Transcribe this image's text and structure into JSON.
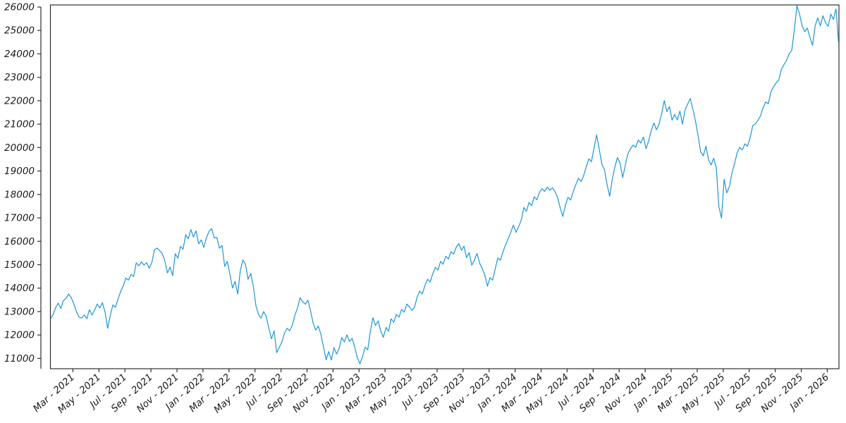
{
  "chart_data": {
    "type": "line",
    "title": "",
    "xlabel": "",
    "ylabel": "",
    "legend": "none",
    "grid": "off",
    "line_color": "#1b97d8",
    "axis_color": "#2e2e2e",
    "background_color": "#ffffff",
    "x_unit": "months since Jan 2021",
    "x_start": 0.27,
    "x_step": 0.2,
    "xlim": [
      0.27,
      60.9
    ],
    "ylim": [
      10560,
      26090
    ],
    "y_ticks": [
      11000,
      12000,
      13000,
      14000,
      15000,
      16000,
      17000,
      18000,
      19000,
      20000,
      21000,
      22000,
      23000,
      24000,
      25000,
      26000
    ],
    "x_ticks": [
      {
        "m": 2,
        "label": "Mar - 2021"
      },
      {
        "m": 4,
        "label": "May - 2021"
      },
      {
        "m": 6,
        "label": "Jul - 2021"
      },
      {
        "m": 8,
        "label": "Sep - 2021"
      },
      {
        "m": 10,
        "label": "Nov - 2021"
      },
      {
        "m": 12,
        "label": "Jan - 2022"
      },
      {
        "m": 14,
        "label": "Mar - 2022"
      },
      {
        "m": 16,
        "label": "May - 2022"
      },
      {
        "m": 18,
        "label": "Jul - 2022"
      },
      {
        "m": 20,
        "label": "Sep - 2022"
      },
      {
        "m": 22,
        "label": "Nov - 2022"
      },
      {
        "m": 24,
        "label": "Jan - 2023"
      },
      {
        "m": 26,
        "label": "Mar - 2023"
      },
      {
        "m": 28,
        "label": "May - 2023"
      },
      {
        "m": 30,
        "label": "Jul - 2023"
      },
      {
        "m": 32,
        "label": "Sep - 2023"
      },
      {
        "m": 34,
        "label": "Nov - 2023"
      },
      {
        "m": 36,
        "label": "Jan - 2024"
      },
      {
        "m": 38,
        "label": "Mar - 2024"
      },
      {
        "m": 40,
        "label": "May - 2024"
      },
      {
        "m": 42,
        "label": "Jul - 2024"
      },
      {
        "m": 44,
        "label": "Sep - 2024"
      },
      {
        "m": 46,
        "label": "Nov - 2024"
      },
      {
        "m": 48,
        "label": "Jan - 2025"
      },
      {
        "m": 50,
        "label": "Mar - 2025"
      },
      {
        "m": 52,
        "label": "May - 2025"
      },
      {
        "m": 54,
        "label": "Jul - 2025"
      },
      {
        "m": 56,
        "label": "Sep - 2025"
      },
      {
        "m": 58,
        "label": "Nov - 2025"
      },
      {
        "m": 60,
        "label": "Jan - 2026"
      }
    ],
    "values": [
      12700,
      12860,
      13170,
      13360,
      13130,
      13470,
      13550,
      13750,
      13600,
      13330,
      13000,
      12760,
      12720,
      12850,
      12690,
      13080,
      12850,
      13060,
      13320,
      13160,
      13380,
      12980,
      12290,
      12830,
      13280,
      13180,
      13530,
      13860,
      14100,
      14430,
      14340,
      14580,
      14500,
      15080,
      14950,
      15120,
      14980,
      15090,
      14850,
      15100,
      15640,
      15710,
      15600,
      15470,
      15160,
      14650,
      14900,
      14530,
      15470,
      15280,
      15780,
      15660,
      16280,
      16100,
      16500,
      16180,
      16440,
      15890,
      16060,
      15740,
      16170,
      16420,
      16540,
      16140,
      16160,
      15700,
      15820,
      14930,
      15140,
      14600,
      14000,
      14290,
      13750,
      14740,
      15200,
      15030,
      14380,
      14620,
      14080,
      13250,
      12870,
      12720,
      13000,
      12790,
      12270,
      11840,
      12180,
      11250,
      11470,
      11710,
      12080,
      12290,
      12180,
      12410,
      12840,
      13150,
      13590,
      13420,
      13310,
      13480,
      13040,
      12510,
      12210,
      12380,
      12030,
      11480,
      10940,
      11290,
      10930,
      11460,
      11190,
      11420,
      11890,
      11700,
      12010,
      11720,
      11860,
      11480,
      11020,
      10770,
      11090,
      11480,
      11360,
      12150,
      12740,
      12410,
      12600,
      12170,
      11900,
      12320,
      12160,
      12690,
      12540,
      12880,
      12760,
      13090,
      12970,
      13320,
      13200,
      13050,
      13180,
      13620,
      13870,
      13750,
      14120,
      14380,
      14260,
      14620,
      14890,
      14770,
      15140,
      15020,
      15360,
      15240,
      15560,
      15450,
      15740,
      15900,
      15620,
      15790,
      15300,
      15520,
      14980,
      15190,
      15480,
      15070,
      14840,
      14560,
      14080,
      14450,
      14340,
      14820,
      15290,
      15190,
      15560,
      15850,
      16120,
      16390,
      16690,
      16380,
      16620,
      16900,
      17440,
      17280,
      17660,
      17520,
      17900,
      17770,
      18090,
      18250,
      18130,
      18310,
      18180,
      18290,
      18110,
      17860,
      17420,
      17060,
      17540,
      17880,
      17760,
      18120,
      18420,
      18690,
      18550,
      18810,
      19180,
      19520,
      19400,
      19980,
      20540,
      19920,
      19300,
      19050,
      18420,
      17920,
      18650,
      19160,
      19580,
      19340,
      18720,
      19230,
      19740,
      19950,
      20110,
      20010,
      20320,
      20190,
      20450,
      19950,
      20290,
      20740,
      21050,
      20760,
      21020,
      21450,
      22010,
      21540,
      21750,
      21170,
      21420,
      21180,
      21560,
      21000,
      21620,
      21870,
      22100,
      21640,
      21130,
      20520,
      19820,
      19650,
      20060,
      19480,
      19260,
      19540,
      19150,
      17480,
      16990,
      18650,
      18070,
      18330,
      18900,
      19320,
      19780,
      20010,
      19900,
      20160,
      20060,
      20420,
      20940,
      21010,
      21160,
      21360,
      21700,
      21950,
      21870,
      22380,
      22600,
      22760,
      22880,
      23340,
      23540,
      23720,
      24000,
      24140,
      25020,
      26060,
      25700,
      25200,
      24950,
      25100,
      24700,
      24360,
      25200,
      25540,
      25200,
      25630,
      25330,
      25180,
      25700,
      25480,
      25920,
      24520
    ]
  }
}
